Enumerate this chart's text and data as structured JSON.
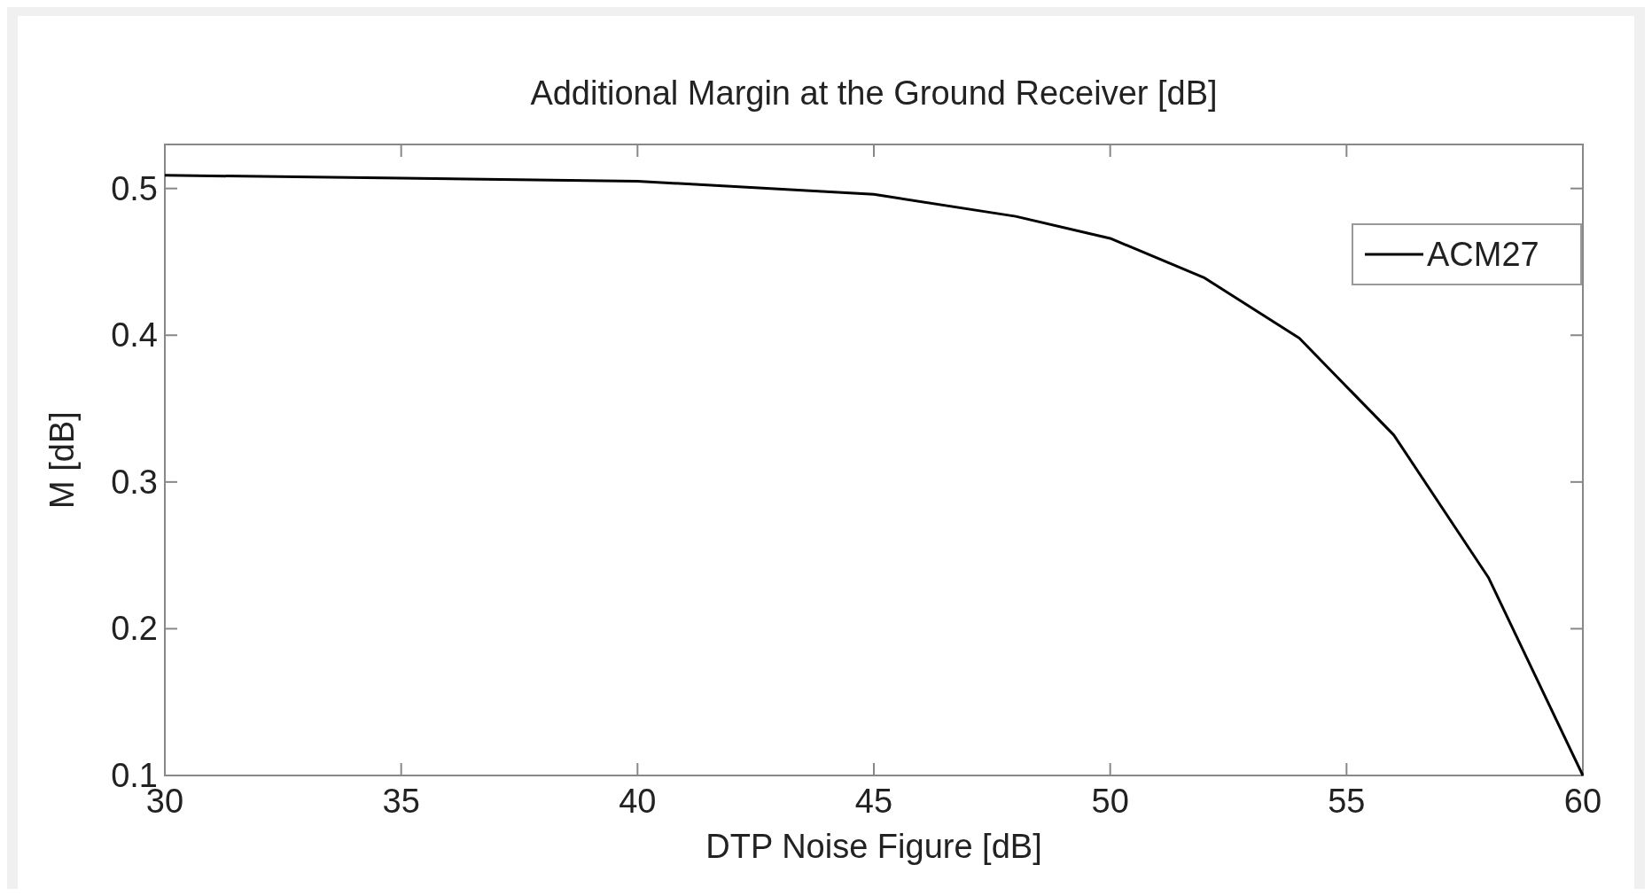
{
  "chart_data": {
    "type": "line",
    "title": "Additional Margin at the Ground Receiver [dB]",
    "xlabel": "DTP Noise Figure [dB]",
    "ylabel": "M [dB]",
    "x": [
      30,
      35,
      40,
      45,
      48,
      50,
      52,
      54,
      56,
      58,
      60
    ],
    "series": [
      {
        "name": "ACM27",
        "color": "#000000",
        "values": [
          0.509,
          0.507,
          0.505,
          0.496,
          0.481,
          0.466,
          0.439,
          0.398,
          0.332,
          0.235,
          0.1
        ]
      }
    ],
    "xlim": [
      30,
      60
    ],
    "xticks": [
      30,
      35,
      40,
      45,
      50,
      55,
      60
    ],
    "ylim": [
      0.1,
      0.53
    ],
    "yticks": [
      0.1,
      0.2,
      0.3,
      0.4,
      0.5
    ],
    "legend": "top right",
    "grid": false,
    "marker": "none",
    "line_style": "solid"
  }
}
